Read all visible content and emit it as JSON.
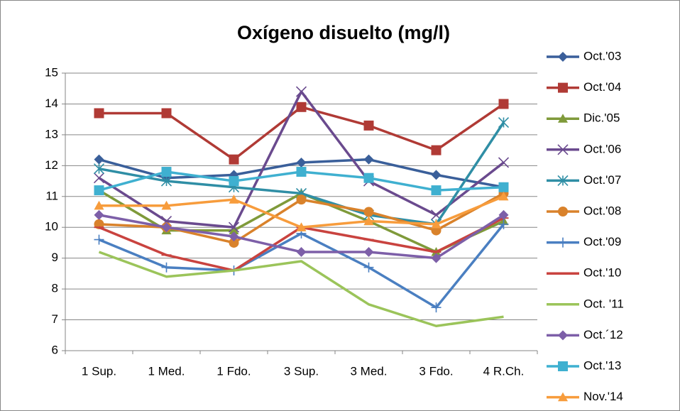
{
  "chart_data": {
    "type": "line",
    "title": "Oxígeno disuelto (mg/l)",
    "categories": [
      "1 Sup.",
      "1 Med.",
      "1 Fdo.",
      "3 Sup.",
      "3 Med.",
      "3 Fdo.",
      "4 R.Ch."
    ],
    "ylim": [
      6,
      15
    ],
    "yticks": [
      6,
      7,
      8,
      9,
      10,
      11,
      12,
      13,
      14,
      15
    ],
    "grid": true,
    "legend": "right",
    "series": [
      {
        "name": "Oct.'03",
        "color": "#3a5f9a",
        "marker": "diamond",
        "values": [
          12.2,
          11.6,
          11.7,
          12.1,
          12.2,
          11.7,
          11.3
        ]
      },
      {
        "name": "Oct.'04",
        "color": "#b03a35",
        "marker": "square",
        "values": [
          13.7,
          13.7,
          12.2,
          13.9,
          13.3,
          12.5,
          14.0
        ]
      },
      {
        "name": "Dic.'05",
        "color": "#7f9a3a",
        "marker": "triangle",
        "values": [
          11.2,
          9.9,
          9.9,
          11.1,
          10.2,
          9.2,
          10.2
        ]
      },
      {
        "name": "Oct.'06",
        "color": "#6a4a8e",
        "marker": "x",
        "values": [
          11.6,
          10.2,
          10.0,
          14.4,
          11.5,
          10.4,
          12.1
        ]
      },
      {
        "name": "Oct.'07",
        "color": "#2f8ea5",
        "marker": "star",
        "values": [
          11.9,
          11.5,
          11.3,
          11.1,
          10.4,
          10.1,
          13.4
        ]
      },
      {
        "name": "Oct.'08",
        "color": "#d9822b",
        "marker": "circle",
        "values": [
          10.1,
          10.0,
          9.5,
          10.9,
          10.5,
          9.9,
          11.1
        ]
      },
      {
        "name": "Oct.'09",
        "color": "#4a7fc1",
        "marker": "plus",
        "values": [
          9.6,
          8.7,
          8.6,
          9.8,
          8.7,
          7.4,
          10.1
        ]
      },
      {
        "name": "Oct.'10",
        "color": "#c9433f",
        "marker": "dash",
        "values": [
          10.0,
          9.1,
          8.6,
          10.0,
          9.6,
          9.2,
          10.3
        ]
      },
      {
        "name": "Oct. '11",
        "color": "#9bc45a",
        "marker": "none",
        "values": [
          9.2,
          8.4,
          8.6,
          8.9,
          7.5,
          6.8,
          7.1
        ]
      },
      {
        "name": "Oct.´12",
        "color": "#7d5fa8",
        "marker": "diamond",
        "values": [
          10.4,
          10.0,
          9.7,
          9.2,
          9.2,
          9.0,
          10.4
        ]
      },
      {
        "name": "Oct.'13",
        "color": "#3fb0d0",
        "marker": "square",
        "values": [
          11.2,
          11.8,
          11.5,
          11.8,
          11.6,
          11.2,
          11.3
        ]
      },
      {
        "name": "Nov.'14",
        "color": "#f79c3c",
        "marker": "triangle",
        "values": [
          10.7,
          10.7,
          10.9,
          10.0,
          10.2,
          10.1,
          11.0
        ]
      }
    ]
  }
}
